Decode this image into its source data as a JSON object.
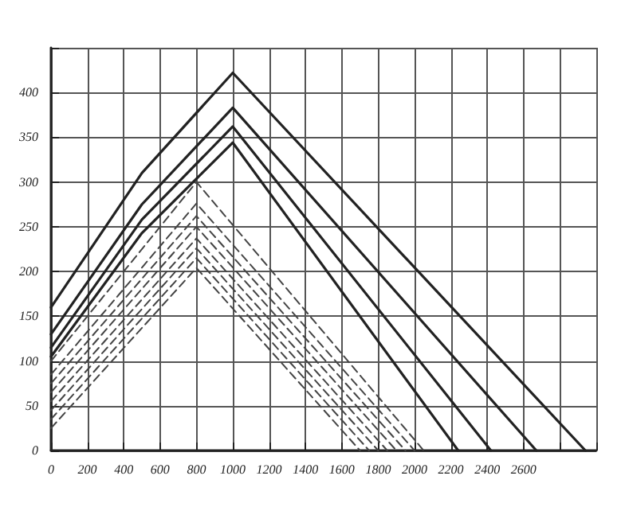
{
  "chart_data": {
    "type": "line",
    "xlim": [
      0,
      3000
    ],
    "xticks": [
      0,
      200,
      400,
      600,
      800,
      1000,
      1200,
      1400,
      1600,
      1800,
      2000,
      2200,
      2400,
      2600,
      {
        "value": 2800,
        "label": null
      },
      {
        "value": 3000,
        "label": null
      }
    ],
    "ylim": [
      0,
      450
    ],
    "yticks": [
      0,
      50,
      100,
      150,
      200,
      250,
      300,
      350,
      400,
      {
        "value": 450,
        "label": null
      }
    ],
    "grid": true,
    "marker": "none",
    "series": [
      {
        "color": "#222222",
        "line_style": "solid",
        "x": [
          0,
          500,
          1000,
          2940
        ],
        "values": [
          160,
          310,
          422,
          0
        ]
      },
      {
        "color": "#222222",
        "line_style": "solid",
        "x": [
          0,
          500,
          1000,
          2670
        ],
        "values": [
          130,
          275,
          383,
          0
        ]
      },
      {
        "color": "#222222",
        "line_style": "solid",
        "x": [
          0,
          500,
          1000,
          2420
        ],
        "values": [
          115,
          258,
          362,
          0
        ]
      },
      {
        "color": "#222222",
        "line_style": "solid",
        "x": [
          0,
          500,
          1000,
          2240
        ],
        "values": [
          105,
          243,
          344,
          0
        ]
      },
      {
        "color": "#444444",
        "line_style": "dashed",
        "x": [
          0,
          800,
          2050
        ],
        "values": [
          100,
          300,
          0
        ]
      },
      {
        "color": "#444444",
        "line_style": "dashed",
        "x": [
          0,
          800,
          2000
        ],
        "values": [
          85,
          276,
          0
        ]
      },
      {
        "color": "#444444",
        "line_style": "dashed",
        "x": [
          0,
          800,
          1950
        ],
        "values": [
          75,
          262,
          0
        ]
      },
      {
        "color": "#444444",
        "line_style": "dashed",
        "x": [
          0,
          800,
          1900
        ],
        "values": [
          65,
          250,
          0
        ]
      },
      {
        "color": "#444444",
        "line_style": "dashed",
        "x": [
          0,
          800,
          1850
        ],
        "values": [
          55,
          237,
          0
        ]
      },
      {
        "color": "#444444",
        "line_style": "dashed",
        "x": [
          0,
          800,
          1800
        ],
        "values": [
          45,
          226,
          0
        ]
      },
      {
        "color": "#444444",
        "line_style": "dashed",
        "x": [
          0,
          800,
          1750
        ],
        "values": [
          35,
          215,
          0
        ]
      },
      {
        "color": "#444444",
        "line_style": "dashed",
        "x": [
          0,
          800,
          1700
        ],
        "values": [
          25,
          204,
          0
        ]
      }
    ]
  }
}
